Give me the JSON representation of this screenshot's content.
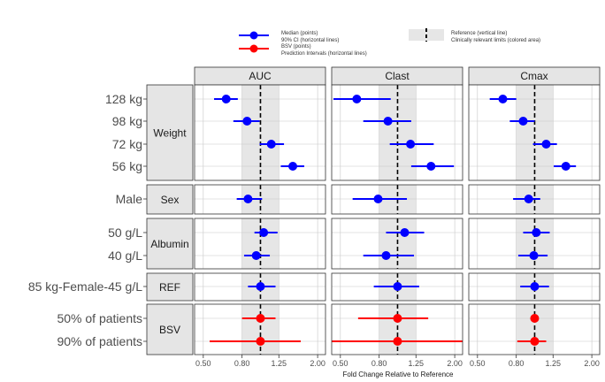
{
  "chart_data": {
    "type": "forest",
    "xlabel": "Fold Change Relative to Reference",
    "x_scale": "log",
    "xlim": [
      0.45,
      2.2
    ],
    "x_ticks": [
      0.5,
      0.8,
      1.25,
      2.0
    ],
    "x_tick_labels": [
      "0.50",
      "0.80",
      "1.25",
      "2.00"
    ],
    "reference_line": 1.0,
    "relevance_band": [
      0.8,
      1.25
    ],
    "panels": [
      "AUC",
      "Clast",
      "Cmax"
    ],
    "colors": {
      "points": "#0000ff",
      "bsv": "#ff0000",
      "band": "#e6e6e6",
      "strip": "#e5e5e5",
      "grid": "#c8c8c8"
    },
    "legend": {
      "placement": "top",
      "items": [
        {
          "kind": "point",
          "color": "#0000ff",
          "line1": "Median (points)",
          "line2": "90% CI (horizontal lines)"
        },
        {
          "kind": "point",
          "color": "#ff0000",
          "line1": "BSV (points)",
          "line2": "Prediction Intervals (horizontal lines)"
        },
        {
          "kind": "ref",
          "color": "#000000",
          "line1": "Reference (vertical line)",
          "line2": "Clinically relevant limits (colored area)"
        }
      ]
    },
    "groups": [
      {
        "name": "Weight",
        "rows": [
          {
            "label": "128 kg",
            "kind": "cov",
            "AUC": [
              0.66,
              0.57,
              0.76
            ],
            "Clast": [
              0.61,
              0.46,
              0.92
            ],
            "Cmax": [
              0.68,
              0.58,
              0.8
            ]
          },
          {
            "label": "98 kg",
            "kind": "cov",
            "AUC": [
              0.85,
              0.72,
              0.99
            ],
            "Clast": [
              0.89,
              0.66,
              1.18
            ],
            "Cmax": [
              0.87,
              0.74,
              1.0
            ]
          },
          {
            "label": "72 kg",
            "kind": "cov",
            "AUC": [
              1.14,
              0.99,
              1.33
            ],
            "Clast": [
              1.17,
              0.91,
              1.55
            ],
            "Cmax": [
              1.15,
              0.98,
              1.31
            ]
          },
          {
            "label": "56 kg",
            "kind": "cov",
            "AUC": [
              1.48,
              1.28,
              1.7
            ],
            "Clast": [
              1.5,
              1.18,
              1.98
            ],
            "Cmax": [
              1.46,
              1.26,
              1.65
            ]
          }
        ]
      },
      {
        "name": "Sex",
        "rows": [
          {
            "label": "Male",
            "kind": "cov",
            "AUC": [
              0.86,
              0.75,
              1.02
            ],
            "Clast": [
              0.79,
              0.58,
              1.12
            ],
            "Cmax": [
              0.93,
              0.77,
              1.07
            ]
          }
        ]
      },
      {
        "name": "Albumin",
        "rows": [
          {
            "label": "50 g/L",
            "kind": "cov",
            "AUC": [
              1.04,
              0.93,
              1.23
            ],
            "Clast": [
              1.09,
              0.87,
              1.38
            ],
            "Cmax": [
              1.02,
              0.87,
              1.2
            ]
          },
          {
            "label": "40 g/L",
            "kind": "cov",
            "AUC": [
              0.95,
              0.82,
              1.12
            ],
            "Clast": [
              0.87,
              0.66,
              1.22
            ],
            "Cmax": [
              0.99,
              0.82,
              1.17
            ]
          }
        ]
      },
      {
        "name": "REF",
        "rows": [
          {
            "label": "85 kg-Female-45 g/L",
            "kind": "ref",
            "AUC": [
              1.0,
              0.86,
              1.2
            ],
            "Clast": [
              1.0,
              0.75,
              1.3
            ],
            "Cmax": [
              1.0,
              0.84,
              1.19
            ]
          }
        ]
      },
      {
        "name": "BSV",
        "rows": [
          {
            "label": "50% of patients",
            "kind": "bsv",
            "AUC": [
              1.0,
              0.8,
              1.2
            ],
            "Clast": [
              1.0,
              0.62,
              1.45
            ],
            "Cmax": [
              1.0,
              0.95,
              1.05
            ]
          },
          {
            "label": "90% of patients",
            "kind": "bsv",
            "AUC": [
              1.0,
              0.54,
              1.63
            ],
            "Clast": [
              1.0,
              0.45,
              2.2
            ],
            "Cmax": [
              1.0,
              0.81,
              1.15
            ]
          }
        ]
      }
    ]
  }
}
